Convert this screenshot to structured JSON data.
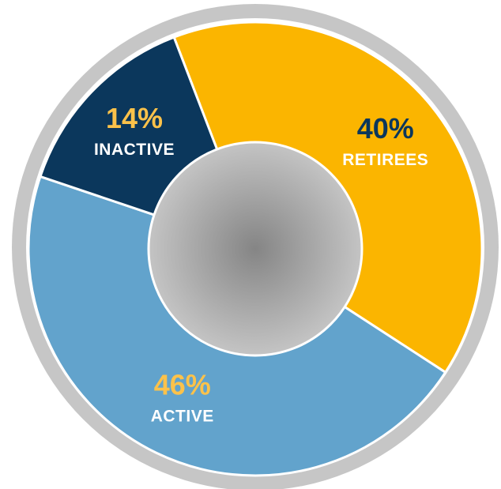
{
  "chart_data": {
    "type": "donut",
    "categories": [
      "RETIREES",
      "ACTIVE",
      "INACTIVE"
    ],
    "values": [
      40,
      46,
      14
    ],
    "value_labels": [
      "40%",
      "46%",
      "14%"
    ],
    "colors": [
      "#fbb500",
      "#62a3cc",
      "#0b375c"
    ],
    "value_label_colors": [
      "#0b375c",
      "#fcc24a",
      "#fcc24a"
    ]
  }
}
